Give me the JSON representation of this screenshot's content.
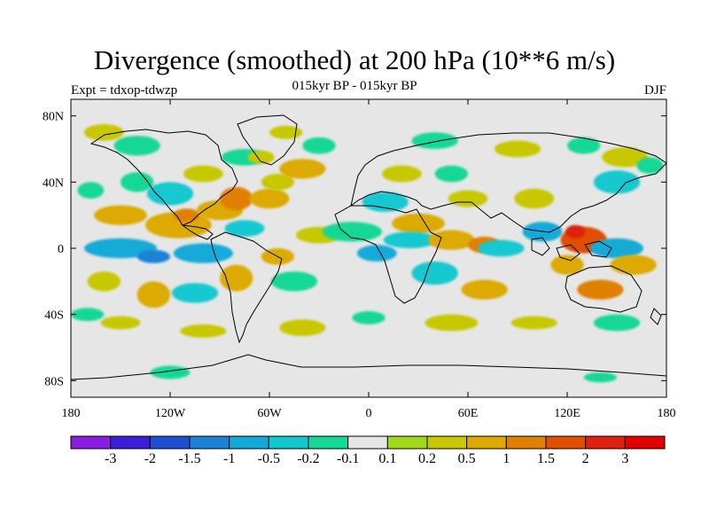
{
  "title": "Divergence (smoothed) at 200 hPa (10**6 m/s)",
  "subtitle": "015kyr BP - 015kyr BP",
  "expt_label": "Expt = tdxop-tdwzp",
  "season": "DJF",
  "map": {
    "projection": "cylindrical-equidistant",
    "lon_range": [
      -180,
      180
    ],
    "lat_range": [
      -90,
      90
    ],
    "background_color": "#e6e6e6",
    "coastline_color": "#000000",
    "x_ticks": [
      {
        "value": -180,
        "label": "180"
      },
      {
        "value": -120,
        "label": "120W"
      },
      {
        "value": -60,
        "label": "60W"
      },
      {
        "value": 0,
        "label": "0"
      },
      {
        "value": 60,
        "label": "60E"
      },
      {
        "value": 120,
        "label": "120E"
      },
      {
        "value": 180,
        "label": "180"
      }
    ],
    "y_ticks": [
      {
        "value": 80,
        "label": "80N"
      },
      {
        "value": 40,
        "label": "40N"
      },
      {
        "value": 0,
        "label": "0"
      },
      {
        "value": -40,
        "label": "40S"
      },
      {
        "value": -80,
        "label": "80S"
      }
    ]
  },
  "colorbar": {
    "levels": [
      "-3",
      "-2",
      "-1.5",
      "-1",
      "-0.5",
      "-0.2",
      "-0.1",
      "0.1",
      "0.2",
      "0.5",
      "1",
      "1.5",
      "2",
      "3"
    ],
    "colors": [
      "#8a1ee0",
      "#3c1ed8",
      "#1e4fd0",
      "#1b82d6",
      "#12aad8",
      "#12c8cf",
      "#16d896",
      "#e6e6e6",
      "#a0d81a",
      "#c8c800",
      "#dcaa00",
      "#e08000",
      "#e05000",
      "#e02010",
      "#e00000"
    ]
  },
  "field_blobs": [
    {
      "lon": -168,
      "lat": 35,
      "rx": 8,
      "ry": 5,
      "value": -0.2
    },
    {
      "lon": -120,
      "lat": 33,
      "rx": 14,
      "ry": 7,
      "value": -0.5
    },
    {
      "lon": -140,
      "lat": 40,
      "rx": 10,
      "ry": 6,
      "value": -0.2
    },
    {
      "lon": -100,
      "lat": 45,
      "rx": 12,
      "ry": 5,
      "value": 0.2
    },
    {
      "lon": -75,
      "lat": 55,
      "rx": 14,
      "ry": 5,
      "value": -0.2
    },
    {
      "lon": -65,
      "lat": 55,
      "rx": 8,
      "ry": 4,
      "value": 0.2
    },
    {
      "lon": -150,
      "lat": 20,
      "rx": 16,
      "ry": 6,
      "value": 0.5
    },
    {
      "lon": -115,
      "lat": 14,
      "rx": 20,
      "ry": 8,
      "value": 0.5
    },
    {
      "lon": -110,
      "lat": 20,
      "rx": 8,
      "ry": 4,
      "value": 1
    },
    {
      "lon": -90,
      "lat": 23,
      "rx": 14,
      "ry": 6,
      "value": 0.5
    },
    {
      "lon": -80,
      "lat": 30,
      "rx": 10,
      "ry": 7,
      "value": 1
    },
    {
      "lon": -75,
      "lat": 12,
      "rx": 12,
      "ry": 5,
      "value": -0.5
    },
    {
      "lon": -60,
      "lat": 30,
      "rx": 12,
      "ry": 6,
      "value": 0.5
    },
    {
      "lon": -55,
      "lat": 40,
      "rx": 10,
      "ry": 5,
      "value": 0.2
    },
    {
      "lon": -40,
      "lat": 48,
      "rx": 14,
      "ry": 6,
      "value": 0.5
    },
    {
      "lon": -30,
      "lat": 62,
      "rx": 10,
      "ry": 5,
      "value": -0.2
    },
    {
      "lon": -150,
      "lat": 0,
      "rx": 22,
      "ry": 6,
      "value": -1
    },
    {
      "lon": -100,
      "lat": -3,
      "rx": 18,
      "ry": 6,
      "value": -1
    },
    {
      "lon": -130,
      "lat": -5,
      "rx": 10,
      "ry": 4,
      "value": -1.5
    },
    {
      "lon": -130,
      "lat": -28,
      "rx": 10,
      "ry": 8,
      "value": 0.5
    },
    {
      "lon": -160,
      "lat": -20,
      "rx": 10,
      "ry": 6,
      "value": 0.2
    },
    {
      "lon": -105,
      "lat": -27,
      "rx": 14,
      "ry": 6,
      "value": -0.5
    },
    {
      "lon": -80,
      "lat": -18,
      "rx": 10,
      "ry": 8,
      "value": 0.5
    },
    {
      "lon": -45,
      "lat": -20,
      "rx": 14,
      "ry": 6,
      "value": -0.2
    },
    {
      "lon": -55,
      "lat": -5,
      "rx": 10,
      "ry": 5,
      "value": 0.5
    },
    {
      "lon": -30,
      "lat": 8,
      "rx": 14,
      "ry": 5,
      "value": 0.2
    },
    {
      "lon": -10,
      "lat": 10,
      "rx": 18,
      "ry": 6,
      "value": -0.2
    },
    {
      "lon": 10,
      "lat": 28,
      "rx": 14,
      "ry": 6,
      "value": -0.5
    },
    {
      "lon": 20,
      "lat": 45,
      "rx": 12,
      "ry": 5,
      "value": 0.2
    },
    {
      "lon": 50,
      "lat": 45,
      "rx": 10,
      "ry": 5,
      "value": -0.2
    },
    {
      "lon": 60,
      "lat": 30,
      "rx": 12,
      "ry": 5,
      "value": 0.2
    },
    {
      "lon": 30,
      "lat": 15,
      "rx": 16,
      "ry": 6,
      "value": 0.5
    },
    {
      "lon": 25,
      "lat": 5,
      "rx": 16,
      "ry": 5,
      "value": -0.5
    },
    {
      "lon": 5,
      "lat": -3,
      "rx": 12,
      "ry": 5,
      "value": -1
    },
    {
      "lon": 50,
      "lat": 5,
      "rx": 14,
      "ry": 6,
      "value": 0.5
    },
    {
      "lon": 70,
      "lat": 2,
      "rx": 10,
      "ry": 5,
      "value": 1
    },
    {
      "lon": 80,
      "lat": 0,
      "rx": 14,
      "ry": 5,
      "value": -0.5
    },
    {
      "lon": 40,
      "lat": -15,
      "rx": 14,
      "ry": 7,
      "value": -0.5
    },
    {
      "lon": 70,
      "lat": -25,
      "rx": 14,
      "ry": 6,
      "value": 0.5
    },
    {
      "lon": 100,
      "lat": 30,
      "rx": 12,
      "ry": 6,
      "value": 0.2
    },
    {
      "lon": 105,
      "lat": 10,
      "rx": 12,
      "ry": 6,
      "value": -1
    },
    {
      "lon": 130,
      "lat": 5,
      "rx": 14,
      "ry": 8,
      "value": 1.5
    },
    {
      "lon": 125,
      "lat": 10,
      "rx": 6,
      "ry": 4,
      "value": 2
    },
    {
      "lon": 150,
      "lat": 0,
      "rx": 16,
      "ry": 6,
      "value": -1
    },
    {
      "lon": 160,
      "lat": -10,
      "rx": 14,
      "ry": 6,
      "value": 0.5
    },
    {
      "lon": 140,
      "lat": -25,
      "rx": 14,
      "ry": 6,
      "value": 1
    },
    {
      "lon": 120,
      "lat": -10,
      "rx": 10,
      "ry": 6,
      "value": 0.5
    },
    {
      "lon": 150,
      "lat": 40,
      "rx": 14,
      "ry": 7,
      "value": -0.5
    },
    {
      "lon": 155,
      "lat": 55,
      "rx": 14,
      "ry": 6,
      "value": 0.2
    },
    {
      "lon": 170,
      "lat": 50,
      "rx": 8,
      "ry": 5,
      "value": -0.2
    },
    {
      "lon": -170,
      "lat": -40,
      "rx": 10,
      "ry": 4,
      "value": -0.2
    },
    {
      "lon": -150,
      "lat": -45,
      "rx": 12,
      "ry": 4,
      "value": 0.2
    },
    {
      "lon": -100,
      "lat": -50,
      "rx": 14,
      "ry": 4,
      "value": 0.2
    },
    {
      "lon": -40,
      "lat": -48,
      "rx": 14,
      "ry": 5,
      "value": 0.2
    },
    {
      "lon": 0,
      "lat": -42,
      "rx": 10,
      "ry": 4,
      "value": -0.2
    },
    {
      "lon": 50,
      "lat": -45,
      "rx": 16,
      "ry": 5,
      "value": 0.2
    },
    {
      "lon": 100,
      "lat": -45,
      "rx": 14,
      "ry": 4,
      "value": 0.2
    },
    {
      "lon": 150,
      "lat": -45,
      "rx": 14,
      "ry": 5,
      "value": -0.2
    },
    {
      "lon": -120,
      "lat": -75,
      "rx": 12,
      "ry": 4,
      "value": -0.2
    },
    {
      "lon": 140,
      "lat": -78,
      "rx": 10,
      "ry": 3,
      "value": -0.2
    },
    {
      "lon": -160,
      "lat": 70,
      "rx": 12,
      "ry": 5,
      "value": 0.2
    },
    {
      "lon": -140,
      "lat": 62,
      "rx": 14,
      "ry": 6,
      "value": -0.2
    },
    {
      "lon": -50,
      "lat": 70,
      "rx": 10,
      "ry": 4,
      "value": 0.2
    },
    {
      "lon": 40,
      "lat": 65,
      "rx": 14,
      "ry": 5,
      "value": -0.2
    },
    {
      "lon": 90,
      "lat": 60,
      "rx": 14,
      "ry": 5,
      "value": 0.2
    },
    {
      "lon": 130,
      "lat": 62,
      "rx": 10,
      "ry": 5,
      "value": -0.2
    }
  ]
}
